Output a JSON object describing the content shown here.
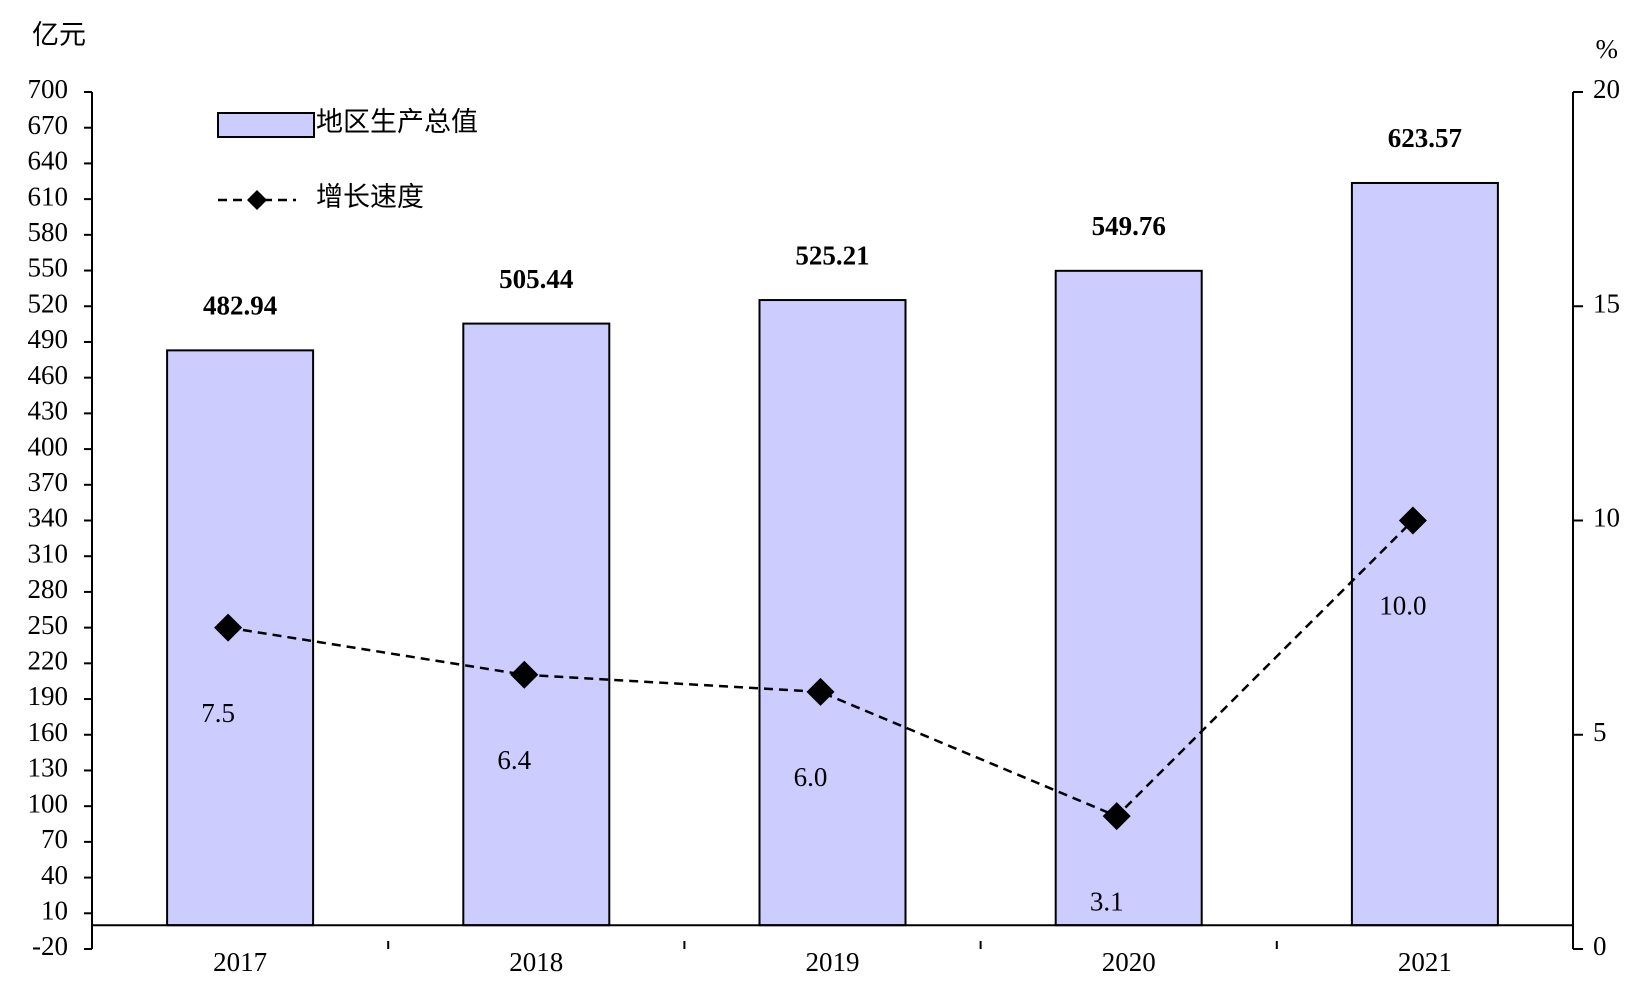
{
  "chart_data": {
    "type": "bar-line",
    "y_label": "亿元",
    "y2_label": "%",
    "categories": [
      "2017",
      "2018",
      "2019",
      "2020",
      "2021"
    ],
    "series": [
      {
        "name": "地区生产总值",
        "type": "bar",
        "color": "#ccccff",
        "values": [
          482.94,
          505.44,
          525.21,
          549.76,
          623.57
        ]
      },
      {
        "name": "增长速度",
        "type": "line",
        "axis": "y2",
        "color": "#000000",
        "values": [
          7.5,
          6.4,
          6.0,
          3.1,
          10.0
        ],
        "value_labels": [
          "7.5",
          "6.4",
          "6.0",
          "3.1",
          "10.0"
        ]
      }
    ],
    "ylim": [
      -20,
      700
    ],
    "yticks": [
      -20,
      10,
      40,
      70,
      100,
      130,
      160,
      190,
      220,
      250,
      280,
      310,
      340,
      370,
      400,
      430,
      460,
      490,
      520,
      550,
      580,
      610,
      640,
      670,
      700
    ],
    "y2lim": [
      0,
      20
    ],
    "y2ticks": [
      0,
      5,
      10,
      15,
      20
    ],
    "legend": "top-left"
  }
}
